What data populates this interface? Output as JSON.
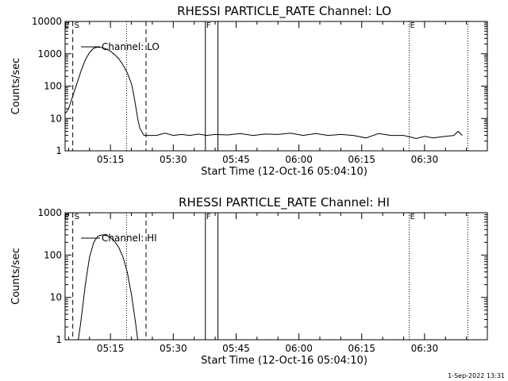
{
  "footer": {
    "timestamp": "1-Sep-2022 13:31"
  },
  "chart_data": [
    {
      "type": "line",
      "title": "RHESSI PARTICLE_RATE Channel: LO",
      "xlabel": "Start Time (12-Oct-16 05:04:10)",
      "ylabel": "Counts/sec",
      "y_scale": "log",
      "xlim": [
        "05:04:10",
        "06:45:00"
      ],
      "ylim": [
        1,
        10000
      ],
      "x_ticks": [
        "05:15",
        "05:30",
        "05:45",
        "06:00",
        "06:15",
        "06:30"
      ],
      "y_ticks": [
        "1",
        "10",
        "100",
        "1000",
        "10000"
      ],
      "legend": {
        "label": "Channel: LO",
        "placement": "top-left"
      },
      "markers": [
        {
          "label": "E",
          "time": "05:04:10",
          "style": "dotted"
        },
        {
          "label": "S",
          "time": "05:06:00",
          "style": "dashed"
        },
        {
          "label": "",
          "time": "05:18:50",
          "style": "dotted"
        },
        {
          "label": "",
          "time": "05:23:30",
          "style": "dashed"
        },
        {
          "label": "F",
          "time": "05:37:40",
          "style": "solid"
        },
        {
          "label": "",
          "time": "05:40:40",
          "style": "solid"
        },
        {
          "label": "E",
          "time": "06:26:20",
          "style": "dotted"
        },
        {
          "label": "",
          "time": "06:40:20",
          "style": "dotted"
        }
      ],
      "series": [
        {
          "x": [
            "05:04:10",
            "05:05:00",
            "05:06:00",
            "05:07:00",
            "05:08:00",
            "05:09:00",
            "05:10:00",
            "05:11:00",
            "05:12:00",
            "05:13:00",
            "05:14:00",
            "05:15:00",
            "05:16:00",
            "05:17:00",
            "05:18:00",
            "05:19:00",
            "05:20:00",
            "05:20:30",
            "05:21:00",
            "05:21:30",
            "05:22:00",
            "05:23:00",
            "05:24:00",
            "05:26:00",
            "05:28:00",
            "05:30:00",
            "05:32:00",
            "05:34:00",
            "05:36:00",
            "05:38:00",
            "05:40:00",
            "05:43:00",
            "05:46:00",
            "05:49:00",
            "05:52:00",
            "05:55:00",
            "05:58:00",
            "06:01:00",
            "06:04:00",
            "06:07:00",
            "06:10:00",
            "06:13:00",
            "06:16:00",
            "06:19:00",
            "06:22:00",
            "06:25:00",
            "06:27:00",
            "06:28:00",
            "06:30:00",
            "06:32:00",
            "06:34:00",
            "06:37:00",
            "06:38:00",
            "06:39:00"
          ],
          "values": [
            14,
            20,
            50,
            120,
            300,
            650,
            1100,
            1500,
            1600,
            1550,
            1400,
            1200,
            950,
            700,
            450,
            260,
            120,
            60,
            25,
            10,
            5,
            3,
            3,
            3,
            3.5,
            3,
            3.2,
            3,
            3.3,
            3,
            3.2,
            3.1,
            3.4,
            3,
            3.3,
            3.2,
            3.5,
            3,
            3.4,
            3,
            3.2,
            3,
            2.5,
            3.4,
            3,
            3,
            2.6,
            2.4,
            2.8,
            2.5,
            2.7,
            3,
            4,
            3
          ]
        }
      ]
    },
    {
      "type": "line",
      "title": "RHESSI PARTICLE_RATE Channel: HI",
      "xlabel": "Start Time (12-Oct-16 05:04:10)",
      "ylabel": "Counts/sec",
      "y_scale": "log",
      "xlim": [
        "05:04:10",
        "06:45:00"
      ],
      "ylim": [
        1,
        1000
      ],
      "x_ticks": [
        "05:15",
        "05:30",
        "05:45",
        "06:00",
        "06:15",
        "06:30"
      ],
      "y_ticks": [
        "1",
        "10",
        "100",
        "1000"
      ],
      "legend": {
        "label": "Channel: HI",
        "placement": "top-left"
      },
      "markers": [
        {
          "label": "E",
          "time": "05:04:10",
          "style": "dotted"
        },
        {
          "label": "S",
          "time": "05:06:00",
          "style": "dashed"
        },
        {
          "label": "",
          "time": "05:18:50",
          "style": "dotted"
        },
        {
          "label": "",
          "time": "05:23:30",
          "style": "dashed"
        },
        {
          "label": "F",
          "time": "05:37:40",
          "style": "solid"
        },
        {
          "label": "",
          "time": "05:40:40",
          "style": "solid"
        },
        {
          "label": "E",
          "time": "06:26:20",
          "style": "dotted"
        },
        {
          "label": "",
          "time": "06:40:20",
          "style": "dotted"
        }
      ],
      "series": [
        {
          "x": [
            "05:07:20",
            "05:08:00",
            "05:09:00",
            "05:10:00",
            "05:11:00",
            "05:12:00",
            "05:13:00",
            "05:14:00",
            "05:15:00",
            "05:16:00",
            "05:17:00",
            "05:18:00",
            "05:19:00",
            "05:20:00",
            "05:21:00",
            "05:21:30"
          ],
          "values": [
            1,
            3,
            20,
            90,
            200,
            280,
            300,
            290,
            260,
            210,
            150,
            90,
            40,
            12,
            2.5,
            1
          ]
        }
      ]
    }
  ]
}
